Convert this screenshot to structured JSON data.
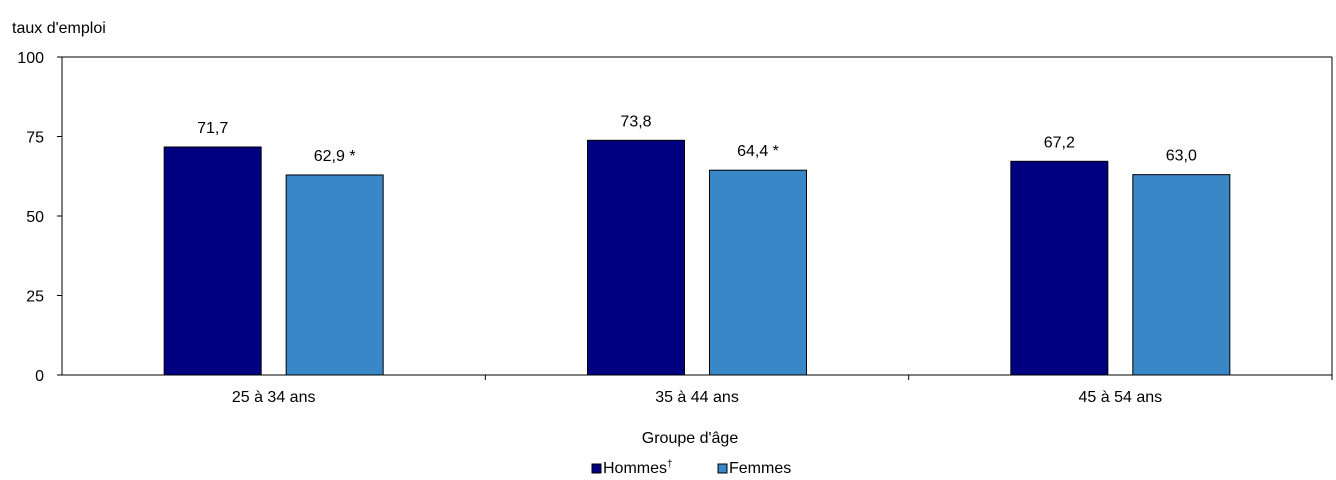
{
  "chart_data": {
    "type": "bar",
    "ylabel": "taux d'emploi",
    "xlabel": "Groupe d'âge",
    "ylim": [
      0,
      100
    ],
    "yticks": [
      0,
      25,
      50,
      75,
      100
    ],
    "grid": false,
    "legend_position": "bottom-center",
    "categories": [
      "25 à 34 ans",
      "35 à 44 ans",
      "45 à 54 ans"
    ],
    "series": [
      {
        "name": "Hommes",
        "legend_suffix": "†",
        "color": "#000080",
        "values": [
          71.7,
          73.8,
          67.2
        ],
        "labels": [
          "71,7",
          "73,8",
          "67,2"
        ]
      },
      {
        "name": "Femmes",
        "legend_suffix": "",
        "color": "#3a87c8",
        "values": [
          62.9,
          64.4,
          63.0
        ],
        "labels": [
          "62,9 *",
          "64,4 *",
          "63,0"
        ]
      }
    ]
  }
}
